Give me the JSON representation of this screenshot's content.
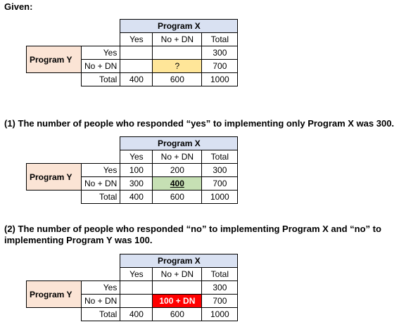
{
  "given_label": "Given:",
  "step1_text": "(1) The number of people who responded “yes” to implementing only Program X was 300.",
  "step2_text": "(2) The number of people who responded “no” to implementing Program X and “no” to implementing Program Y was 100.",
  "labels": {
    "program_x": "Program X",
    "program_y": "Program Y",
    "yes": "Yes",
    "no_dn": "No + DN",
    "total": "Total"
  },
  "tables": [
    {
      "yes_row": [
        "",
        "",
        "300"
      ],
      "no_row": [
        "",
        "?",
        "700"
      ],
      "total_row": [
        "400",
        "600",
        "1000"
      ]
    },
    {
      "yes_row": [
        "100",
        "200",
        "300"
      ],
      "no_row": [
        "300",
        "400",
        "700"
      ],
      "total_row": [
        "400",
        "600",
        "1000"
      ]
    },
    {
      "yes_row": [
        "",
        "",
        "300"
      ],
      "no_row": [
        "",
        "100 + DN",
        "700"
      ],
      "total_row": [
        "400",
        "600",
        "1000"
      ]
    }
  ],
  "colors": {
    "program_x_header": "#d9e1f2",
    "program_y_header": "#fbe4d5",
    "unknown_highlight": "#ffe699",
    "solved_highlight": "#c6e0b4",
    "partial_highlight": "#ff0000"
  }
}
